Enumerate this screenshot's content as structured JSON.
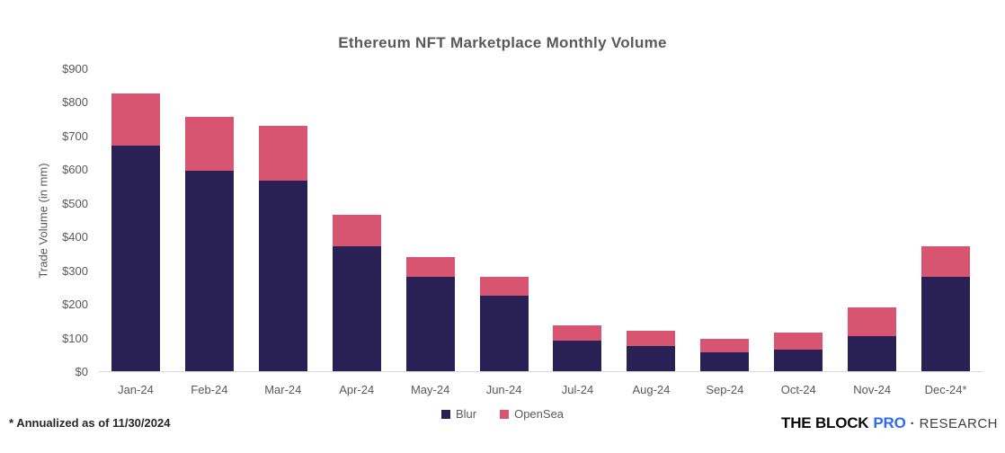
{
  "title": "Ethereum NFT Marketplace Monthly Volume",
  "footnote": "* Annualized as of 11/30/2024",
  "branding": {
    "the_block": "THE BLOCK",
    "pro": "PRO",
    "separator": "·",
    "research": "RESEARCH",
    "pro_color": "#2f6af4"
  },
  "chart_data": {
    "type": "bar",
    "stacked": true,
    "title": "Ethereum NFT Marketplace Monthly Volume",
    "xlabel": "",
    "ylabel": "Trade Volume (in mm)",
    "ylim": [
      0,
      900
    ],
    "ytick_labels": [
      "$0",
      "$100",
      "$200",
      "$300",
      "$400",
      "$500",
      "$600",
      "$700",
      "$800",
      "$900"
    ],
    "grid": false,
    "legend_position": "bottom",
    "background": "#ffffff",
    "categories": [
      "Jan-24",
      "Feb-24",
      "Mar-24",
      "Apr-24",
      "May-24",
      "Jun-24",
      "Jul-24",
      "Aug-24",
      "Sep-24",
      "Oct-24",
      "Nov-24",
      "Dec-24*"
    ],
    "series": [
      {
        "name": "Blur",
        "color": "#292155",
        "values": [
          670,
          595,
          565,
          370,
          280,
          225,
          90,
          75,
          55,
          65,
          105,
          280
        ]
      },
      {
        "name": "OpenSea",
        "color": "#d75570",
        "values": [
          155,
          160,
          165,
          95,
          60,
          55,
          45,
          45,
          40,
          50,
          85,
          90
        ]
      }
    ]
  }
}
